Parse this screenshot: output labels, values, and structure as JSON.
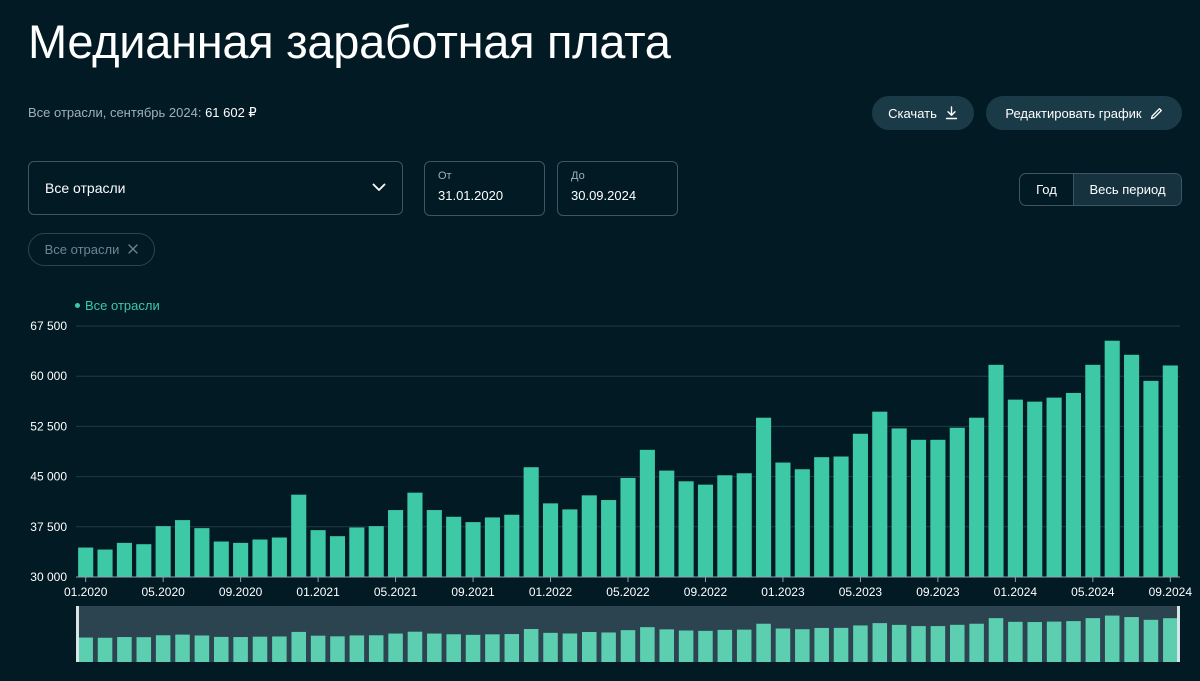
{
  "header": {
    "title": "Медианная заработная плата",
    "summary_label": "Все отрасли, сентябрь 2024:",
    "summary_value": "61 602 ₽"
  },
  "actions": {
    "download_label": "Скачать",
    "edit_label": "Редактировать график"
  },
  "filters": {
    "industry_value": "Все отрасли",
    "from_label": "От",
    "from_value": "31.01.2020",
    "to_label": "До",
    "to_value": "30.09.2024",
    "period_year_label": "Год",
    "period_all_label": "Весь период",
    "period_selected": "all",
    "chip_label": "Все отрасли"
  },
  "colors": {
    "background": "#021a24",
    "bar": "#3ec9a6",
    "overview_bar": "#5ccfb1",
    "grid": "#1e3a47",
    "axis_text": "#ffffff"
  },
  "chart_data": {
    "type": "bar",
    "legend": "Все отрасли",
    "legend_position": "top-left",
    "grid": true,
    "ylim": [
      30000,
      67500
    ],
    "yticks": [
      30000,
      37500,
      45000,
      52500,
      60000,
      67500
    ],
    "ytick_labels": [
      "30 000",
      "37 500",
      "45 000",
      "52 500",
      "60 000",
      "67 500"
    ],
    "xtick_labels": [
      "01.2020",
      "05.2020",
      "09.2020",
      "01.2021",
      "05.2021",
      "09.2021",
      "01.2022",
      "05.2022",
      "09.2022",
      "01.2023",
      "05.2023",
      "09.2023",
      "01.2024",
      "05.2024",
      "09.2024"
    ],
    "categories": [
      "01.2020",
      "02.2020",
      "03.2020",
      "04.2020",
      "05.2020",
      "06.2020",
      "07.2020",
      "08.2020",
      "09.2020",
      "10.2020",
      "11.2020",
      "12.2020",
      "01.2021",
      "02.2021",
      "03.2021",
      "04.2021",
      "05.2021",
      "06.2021",
      "07.2021",
      "08.2021",
      "09.2021",
      "10.2021",
      "11.2021",
      "12.2021",
      "01.2022",
      "02.2022",
      "03.2022",
      "04.2022",
      "05.2022",
      "06.2022",
      "07.2022",
      "08.2022",
      "09.2022",
      "10.2022",
      "11.2022",
      "12.2022",
      "01.2023",
      "02.2023",
      "03.2023",
      "04.2023",
      "05.2023",
      "06.2023",
      "07.2023",
      "08.2023",
      "09.2023",
      "10.2023",
      "11.2023",
      "12.2023",
      "01.2024",
      "02.2024",
      "03.2024",
      "04.2024",
      "05.2024",
      "06.2024",
      "07.2024",
      "08.2024",
      "09.2024"
    ],
    "series": [
      {
        "name": "Все отрасли",
        "values": [
          34400,
          34100,
          35100,
          34900,
          37600,
          38500,
          37300,
          35300,
          35100,
          35600,
          35900,
          42300,
          37000,
          36100,
          37400,
          37600,
          40000,
          42600,
          40000,
          39000,
          38200,
          38900,
          39300,
          46400,
          41000,
          40100,
          42200,
          41500,
          44800,
          49000,
          45900,
          44300,
          43800,
          45200,
          45500,
          53800,
          47100,
          46100,
          47900,
          48000,
          51400,
          54700,
          52200,
          50500,
          50500,
          52300,
          53800,
          61700,
          56500,
          56200,
          56800,
          57500,
          61700,
          65300,
          63200,
          59300,
          61602
        ]
      }
    ]
  }
}
